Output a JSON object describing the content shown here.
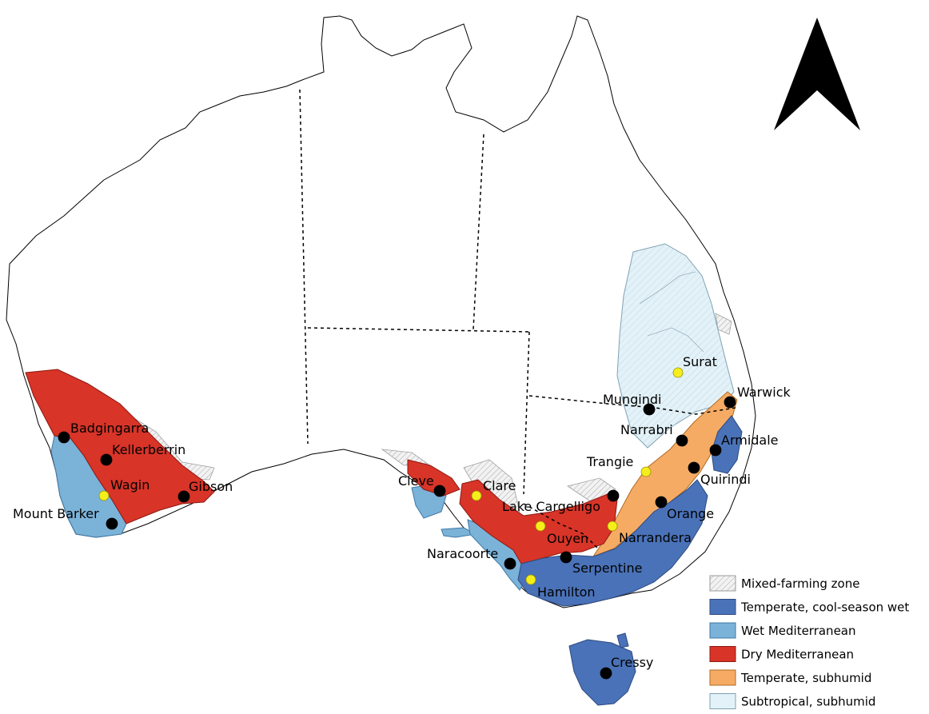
{
  "zones": [
    {
      "id": "mixed",
      "label": "Mixed-farming zone",
      "fill": "#ececec",
      "stroke": "#9a9a9a",
      "pattern": "hatch"
    },
    {
      "id": "temperate-cool",
      "label": "Temperate, cool-season wet",
      "fill": "#4a72b8",
      "stroke": "#2d4a80"
    },
    {
      "id": "wet-med",
      "label": "Wet Mediterranean",
      "fill": "#7bb2d8",
      "stroke": "#3e7aa6"
    },
    {
      "id": "dry-med",
      "label": "Dry Mediterranean",
      "fill": "#d83428",
      "stroke": "#8c1a12"
    },
    {
      "id": "temperate-sub",
      "label": "Temperate, subhumid",
      "fill": "#f6ab64",
      "stroke": "#b06a22"
    },
    {
      "id": "subtropical-sub",
      "label": "Subtropical, subhumid",
      "fill": "#e3f2f8",
      "stroke": "#7fa0b3"
    }
  ],
  "sites": [
    {
      "name": "Badgingarra",
      "marker": "black"
    },
    {
      "name": "Kellerberrin",
      "marker": "black"
    },
    {
      "name": "Wagin",
      "marker": "yellow"
    },
    {
      "name": "Gibson",
      "marker": "black"
    },
    {
      "name": "Mount Barker",
      "marker": "black"
    },
    {
      "name": "Cleve",
      "marker": "black"
    },
    {
      "name": "Clare",
      "marker": "yellow"
    },
    {
      "name": "Lake Cargelligo",
      "marker": "black"
    },
    {
      "name": "Ouyen",
      "marker": "yellow"
    },
    {
      "name": "Narrandera",
      "marker": "yellow"
    },
    {
      "name": "Naracoorte",
      "marker": "black"
    },
    {
      "name": "Serpentine",
      "marker": "black"
    },
    {
      "name": "Hamilton",
      "marker": "yellow"
    },
    {
      "name": "Orange",
      "marker": "black"
    },
    {
      "name": "Trangie",
      "marker": "yellow"
    },
    {
      "name": "Quirindi",
      "marker": "black"
    },
    {
      "name": "Armidale",
      "marker": "black"
    },
    {
      "name": "Narrabri",
      "marker": "black"
    },
    {
      "name": "Mungindi",
      "marker": "black"
    },
    {
      "name": "Warwick",
      "marker": "black"
    },
    {
      "name": "Surat",
      "marker": "yellow"
    },
    {
      "name": "Cressy",
      "marker": "black"
    }
  ],
  "marker_colors": {
    "black": "#000000",
    "yellow": "#f5ee1c"
  },
  "north_arrow": {
    "icon": "north-arrow-icon"
  }
}
